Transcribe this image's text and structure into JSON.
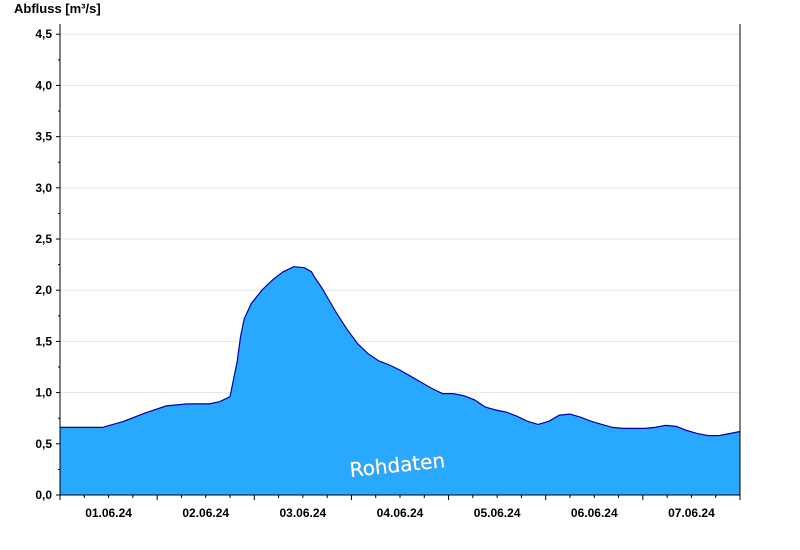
{
  "chart_data": {
    "type": "area",
    "ylabel": "Abfluss [m³/s]",
    "ylim": [
      0,
      4.6
    ],
    "xlim": [
      "31.05.24 00:00",
      "07.06.24 24:00"
    ],
    "y_ticks": [
      "0,0",
      "0,5",
      "1,0",
      "1,5",
      "2,0",
      "2,5",
      "3,0",
      "3,5",
      "4,0",
      "4,5"
    ],
    "x_ticks": [
      "01.06.24",
      "02.06.24",
      "03.06.24",
      "04.06.24",
      "05.06.24",
      "06.06.24",
      "07.06.24"
    ],
    "grid": true,
    "fill_color": "#29a8ff",
    "line_color": "#0000aa",
    "watermark": "Rohdaten",
    "series": [
      {
        "x": [
          "31.05.24 00:00",
          "31.05.24 06:00",
          "31.05.24 12:00",
          "31.05.24 18:00",
          "01.06.24 00:00",
          "01.06.24 06:00",
          "01.06.24 12:00",
          "01.06.24 18:00",
          "01.06.24 21:00",
          "02.06.24 00:00",
          "02.06.24 02:00",
          "02.06.24 03:00",
          "02.06.24 04:00",
          "02.06.24 06:00",
          "02.06.24 09:00",
          "02.06.24 12:00",
          "02.06.24 15:00",
          "02.06.24 18:00",
          "02.06.24 21:00",
          "02.06.24 23:00",
          "03.06.24 00:00",
          "03.06.24 02:00",
          "03.06.24 04:00",
          "03.06.24 06:00",
          "03.06.24 09:00",
          "03.06.24 12:00",
          "03.06.24 15:00",
          "03.06.24 18:00",
          "03.06.24 21:00",
          "04.06.24 00:00",
          "04.06.24 03:00",
          "04.06.24 06:00",
          "04.06.24 09:00",
          "04.06.24 12:00",
          "04.06.24 15:00",
          "04.06.24 18:00",
          "04.06.24 21:00",
          "05.06.24 00:00",
          "05.06.24 03:00",
          "05.06.24 06:00",
          "05.06.24 09:00",
          "05.06.24 12:00",
          "05.06.24 15:00",
          "05.06.24 18:00",
          "05.06.24 21:00",
          "06.06.24 00:00",
          "06.06.24 03:00",
          "06.06.24 06:00",
          "06.06.24 09:00",
          "06.06.24 12:00",
          "06.06.24 15:00",
          "06.06.24 18:00",
          "06.06.24 21:00",
          "07.06.24 00:00",
          "07.06.24 03:00",
          "07.06.24 06:00",
          "07.06.24 09:00",
          "07.06.24 12:00",
          "07.06.24 15:00",
          "07.06.24 18:00",
          "07.06.24 21:00",
          "07.06.24 24:00"
        ],
        "y": [
          0.66,
          0.66,
          0.66,
          0.72,
          0.8,
          0.87,
          0.89,
          0.89,
          0.91,
          0.96,
          1.3,
          1.55,
          1.72,
          1.87,
          2.0,
          2.1,
          2.18,
          2.23,
          2.22,
          2.18,
          2.12,
          2.02,
          1.9,
          1.78,
          1.62,
          1.48,
          1.38,
          1.31,
          1.27,
          1.22,
          1.16,
          1.1,
          1.04,
          0.99,
          0.99,
          0.97,
          0.93,
          0.86,
          0.83,
          0.81,
          0.77,
          0.72,
          0.69,
          0.72,
          0.78,
          0.79,
          0.76,
          0.72,
          0.69,
          0.66,
          0.65,
          0.65,
          0.65,
          0.66,
          0.68,
          0.67,
          0.63,
          0.6,
          0.58,
          0.58,
          0.6,
          0.62
        ]
      }
    ]
  }
}
